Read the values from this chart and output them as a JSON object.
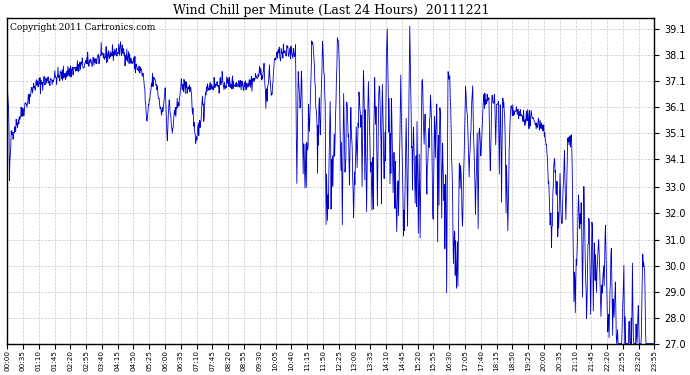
{
  "title": "Wind Chill per Minute (Last 24 Hours)  20111221",
  "copyright": "Copyright 2011 Cartronics.com",
  "line_color": "#0000cc",
  "background_color": "#ffffff",
  "grid_color": "#c8c8c8",
  "ylim": [
    27.0,
    39.5
  ],
  "yticks": [
    27.0,
    28.0,
    29.0,
    30.0,
    31.0,
    32.0,
    33.0,
    34.1,
    35.1,
    36.1,
    37.1,
    38.1,
    39.1
  ],
  "xtick_labels": [
    "00:00",
    "00:35",
    "01:10",
    "01:45",
    "02:20",
    "02:55",
    "03:40",
    "04:15",
    "04:50",
    "05:25",
    "06:00",
    "06:35",
    "07:10",
    "07:45",
    "08:20",
    "08:55",
    "09:30",
    "10:05",
    "10:40",
    "11:15",
    "11:50",
    "12:25",
    "13:00",
    "13:35",
    "14:10",
    "14:45",
    "15:20",
    "15:55",
    "16:30",
    "17:05",
    "17:40",
    "18:15",
    "18:50",
    "19:25",
    "20:00",
    "20:35",
    "21:10",
    "21:45",
    "22:20",
    "22:55",
    "23:20",
    "23:55"
  ],
  "seed": 42
}
